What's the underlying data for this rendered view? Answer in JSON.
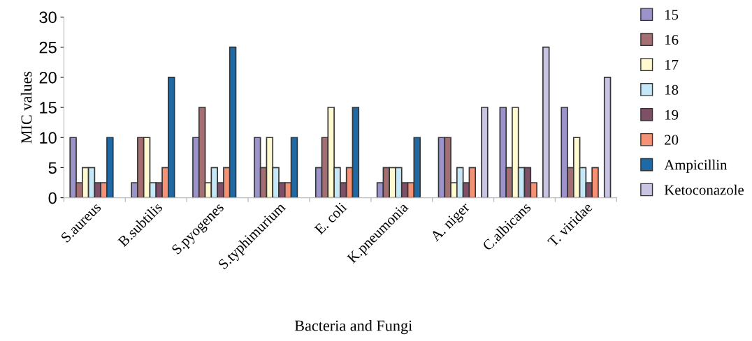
{
  "chart_data": {
    "type": "bar",
    "xlabel": "Bacteria and Fungi",
    "ylabel": "MIC values",
    "categories": [
      "S.aureus",
      "B.subtilis",
      "S.pyogenes",
      "S.typhimurium",
      "E. coli",
      "K.pneumonia",
      "A. niger",
      "C.albicans",
      "T. viridae"
    ],
    "series": [
      {
        "name": "15",
        "color": "#9b93c9",
        "values": [
          10,
          2.5,
          10,
          10,
          5,
          2.5,
          10,
          15,
          15
        ]
      },
      {
        "name": "16",
        "color": "#a46e72",
        "values": [
          2.5,
          10,
          15,
          5,
          10,
          5,
          10,
          5,
          5
        ]
      },
      {
        "name": "17",
        "color": "#fffad2",
        "values": [
          5,
          10,
          2.5,
          10,
          15,
          5,
          2.5,
          15,
          10
        ]
      },
      {
        "name": "18",
        "color": "#c4e8f8",
        "values": [
          5,
          2.5,
          5,
          5,
          5,
          5,
          5,
          5,
          5
        ]
      },
      {
        "name": "19",
        "color": "#7e5068",
        "values": [
          2.5,
          2.5,
          2.5,
          2.5,
          2.5,
          2.5,
          2.5,
          5,
          2.5
        ]
      },
      {
        "name": "20",
        "color": "#f59276",
        "values": [
          2.5,
          5,
          5,
          2.5,
          5,
          2.5,
          5,
          2.5,
          5
        ]
      },
      {
        "name": "Ampicillin",
        "color": "#1f6aa5",
        "values": [
          10,
          20,
          25,
          10,
          15,
          10,
          null,
          null,
          null
        ]
      },
      {
        "name": "Ketoconazole",
        "color": "#c8c4e2",
        "values": [
          null,
          null,
          null,
          null,
          null,
          null,
          15,
          25,
          20
        ]
      }
    ],
    "ylim": [
      0,
      30
    ],
    "yticks": [
      0,
      5,
      10,
      15,
      20,
      25,
      30
    ],
    "grid": false,
    "legend": "right"
  }
}
